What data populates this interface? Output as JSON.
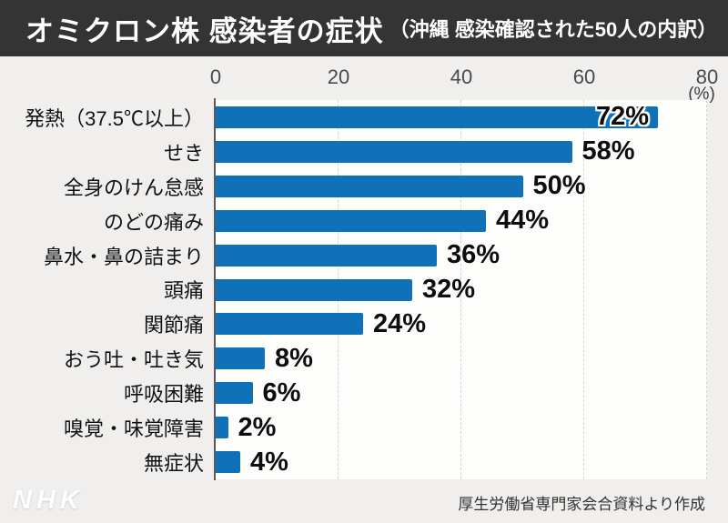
{
  "header": {
    "title": "オミクロン株 感染者の症状",
    "subtitle": "（沖縄 感染確認された50人の内訳）"
  },
  "chart_data": {
    "type": "bar",
    "orientation": "horizontal",
    "title": "オミクロン株 感染者の症状",
    "subtitle": "（沖縄 感染確認された50人の内訳）",
    "categories": [
      "発熱（37.5℃以上）",
      "せき",
      "全身のけん怠感",
      "のどの痛み",
      "鼻水・鼻の詰まり",
      "頭痛",
      "関節痛",
      "おう吐・吐き気",
      "呼吸困難",
      "嗅覚・味覚障害",
      "無症状"
    ],
    "values": [
      72,
      58,
      50,
      44,
      36,
      32,
      24,
      8,
      6,
      2,
      4
    ],
    "value_labels": [
      "72%",
      "58%",
      "50%",
      "44%",
      "36%",
      "32%",
      "24%",
      "8%",
      "6%",
      "2%",
      "4%"
    ],
    "unit": "(%)",
    "xlabel": "",
    "ylabel": "",
    "xlim": [
      0,
      80
    ],
    "ticks": [
      0,
      20,
      40,
      60,
      80
    ],
    "grid": "dashed-vertical",
    "legend": "none",
    "bar_color": "#0f72b8"
  },
  "footer": {
    "logo": "NHK",
    "source": "厚生労働省専門家会合資料より作成"
  },
  "colors": {
    "title_bar_bg": "#343434",
    "title_text": "#ffffff",
    "page_bg": "#f0efee",
    "plot_bg": "#fdfdfc",
    "bar": "#0f72b8",
    "gridline": "#d4d4d4",
    "axis_line": "#595959",
    "tick_text": "#4a4a4a",
    "label_text": "#111111"
  }
}
